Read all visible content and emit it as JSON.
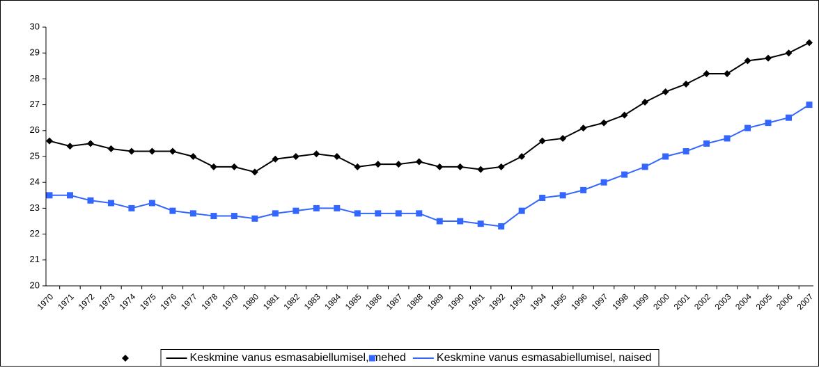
{
  "chart_data": {
    "type": "line",
    "categories": [
      "1970",
      "1971",
      "1972",
      "1973",
      "1974",
      "1975",
      "1976",
      "1977",
      "1978",
      "1979",
      "1980",
      "1981",
      "1982",
      "1983",
      "1984",
      "1985",
      "1986",
      "1987",
      "1988",
      "1989",
      "1990",
      "1991",
      "1992",
      "1993",
      "1994",
      "1995",
      "1996",
      "1997",
      "1998",
      "1999",
      "2000",
      "2001",
      "2002",
      "2003",
      "2004",
      "2005",
      "2006",
      "2007"
    ],
    "series": [
      {
        "name": "Keskmine vanus esmasabiellumisel, mehed",
        "color": "#000000",
        "marker": "diamond",
        "values": [
          25.6,
          25.4,
          25.5,
          25.3,
          25.2,
          25.2,
          25.2,
          25.0,
          24.6,
          24.6,
          24.4,
          24.9,
          25.0,
          25.1,
          25.0,
          24.6,
          24.7,
          24.7,
          24.8,
          24.6,
          24.6,
          24.5,
          24.6,
          25.0,
          25.6,
          25.7,
          26.1,
          26.3,
          26.6,
          27.1,
          27.5,
          27.8,
          28.2,
          28.2,
          28.7,
          28.8,
          29.0,
          29.4
        ]
      },
      {
        "name": "Keskmine vanus esmasabiellumisel, naised",
        "color": "#3366ff",
        "marker": "square",
        "values": [
          23.5,
          23.5,
          23.3,
          23.2,
          23.0,
          23.2,
          22.9,
          22.8,
          22.7,
          22.7,
          22.6,
          22.8,
          22.9,
          23.0,
          23.0,
          22.8,
          22.8,
          22.8,
          22.8,
          22.5,
          22.5,
          22.4,
          22.3,
          22.9,
          23.4,
          23.5,
          23.7,
          24.0,
          24.3,
          24.6,
          25.0,
          25.2,
          25.5,
          25.7,
          26.1,
          26.3,
          26.5,
          27.0
        ]
      }
    ],
    "ylim": [
      20,
      30
    ],
    "yticks": [
      20,
      21,
      22,
      23,
      24,
      25,
      26,
      27,
      28,
      29,
      30
    ],
    "grid": false,
    "legend": "bottom"
  }
}
